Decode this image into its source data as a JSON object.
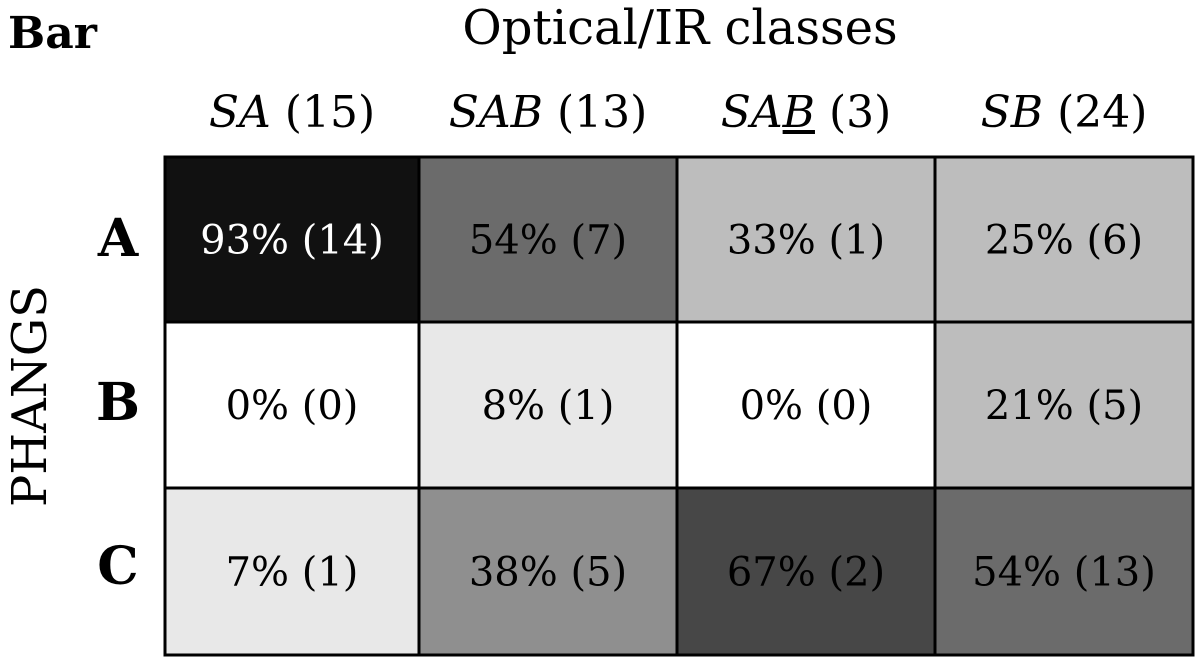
{
  "chart_data": {
    "type": "heatmap",
    "corner_label": "Bar",
    "column_axis_title": "Optical/IR classes",
    "row_axis_title": "PHANGS",
    "columns": [
      {
        "name": "SA",
        "count": "(15)"
      },
      {
        "name": "SAB",
        "count": "(13)"
      },
      {
        "name": "SAB",
        "count": "(3)",
        "underlined_letter": "B"
      },
      {
        "name": "SB",
        "count": "(24)"
      }
    ],
    "rows": [
      "A",
      "B",
      "C"
    ],
    "values_percent": [
      [
        93,
        54,
        33,
        25
      ],
      [
        0,
        8,
        0,
        21
      ],
      [
        7,
        38,
        67,
        54
      ]
    ],
    "counts": [
      [
        14,
        7,
        1,
        6
      ],
      [
        0,
        1,
        0,
        5
      ],
      [
        1,
        5,
        2,
        13
      ]
    ],
    "cell_labels": [
      [
        "93% (14)",
        "54% (7)",
        "33% (1)",
        "25% (6)"
      ],
      [
        "0% (0)",
        "8% (1)",
        "0% (0)",
        "21% (5)"
      ],
      [
        "7% (1)",
        "38% (5)",
        "67% (2)",
        "54% (13)"
      ]
    ],
    "colorscale": "grayscale",
    "colors": [
      [
        "#111111",
        "#6b6b6b",
        "#bdbdbd",
        "#bdbdbd"
      ],
      [
        "#ffffff",
        "#e8e8e8",
        "#ffffff",
        "#bdbdbd"
      ],
      [
        "#e8e8e8",
        "#8f8f8f",
        "#474747",
        "#6b6b6b"
      ]
    ]
  }
}
